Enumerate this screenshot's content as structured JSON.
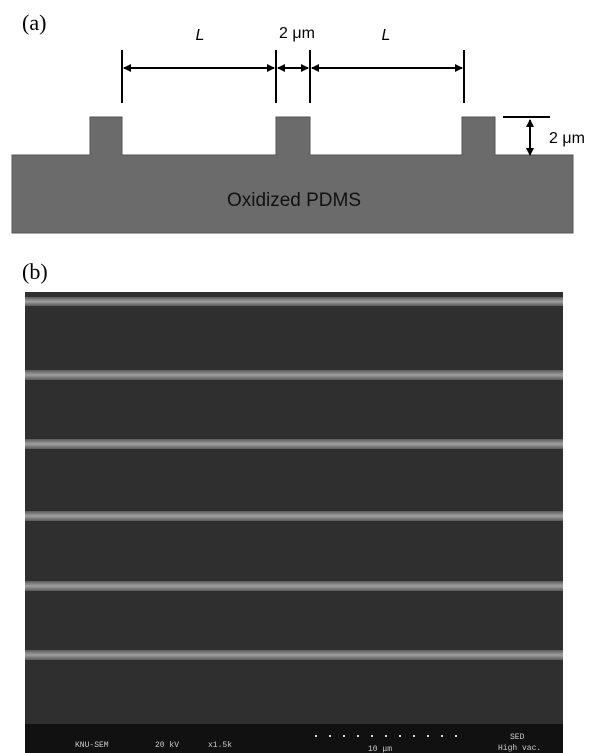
{
  "panel_a": {
    "label": "(a)",
    "dimensions": [
      "L",
      "2 μm",
      "L"
    ],
    "height": "2 μm",
    "material": "Oxidized PDMS"
  },
  "panel_b": {
    "label": "(b)",
    "sem_info": [
      "KNU-SEM",
      "20 kV",
      "x1.5k",
      "10 μm",
      "SED",
      "High vac."
    ]
  }
}
